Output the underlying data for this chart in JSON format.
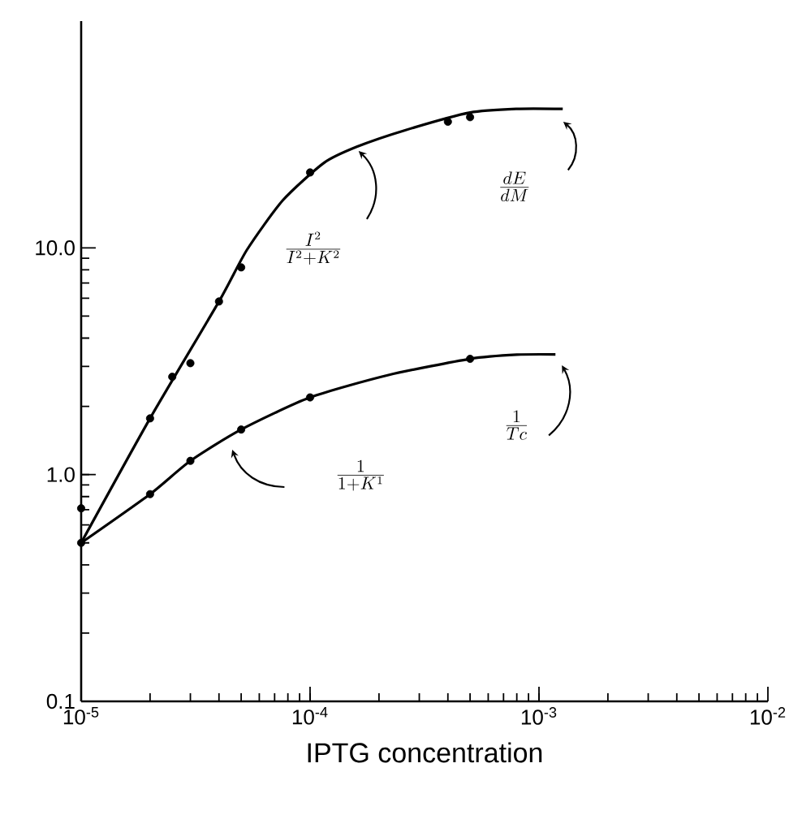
{
  "chart_data": {
    "type": "line",
    "xlabel": "IPTG concentration",
    "log": "xy",
    "xlim": [
      1e-05,
      0.01
    ],
    "ylim": [
      0.1,
      100
    ],
    "xticks": [
      {
        "value": 1e-05,
        "label": "10$^{-5}$"
      },
      {
        "value": 0.0001,
        "label": "10$^{-4}$"
      },
      {
        "value": 0.001,
        "label": "10$^{-3}$"
      },
      {
        "value": 0.01,
        "label": "10$^{-2}$"
      }
    ],
    "yticks": [
      0.1,
      {
        "value": 1,
        "label": "1.0"
      },
      {
        "value": 10,
        "label": "10.0"
      }
    ],
    "series": [
      {
        "type": "scatter",
        "marker": "circle",
        "color": "#000000",
        "x": [
          1e-05,
          2e-05,
          2.5e-05,
          3e-05,
          4e-05,
          5e-05,
          0.0001,
          0.0004,
          0.0005
        ],
        "values": [
          0.71,
          1.77,
          2.7,
          3.1,
          5.8,
          8.2,
          21.5,
          36,
          37.7
        ]
      },
      {
        "color": "#000000",
        "x": [
          1e-05,
          2e-05,
          4e-05,
          5.3e-05,
          7.6e-05,
          0.000115,
          0.00016,
          0.00026,
          0.0005,
          0.0008,
          0.00127
        ],
        "values": [
          0.5,
          1.77,
          5.8,
          9.8,
          16.2,
          23.7,
          27.9,
          33,
          39.5,
          41,
          41
        ]
      },
      {
        "type": "scatter",
        "marker": "circle",
        "color": "#000000",
        "x": [
          1e-05,
          2e-05,
          3e-05,
          5e-05,
          0.0001,
          0.0005
        ],
        "values": [
          0.5,
          0.82,
          1.15,
          1.58,
          2.19,
          3.24
        ]
      },
      {
        "color": "#000000",
        "x": [
          1e-05,
          2e-05,
          3e-05,
          5e-05,
          0.0001,
          0.00022,
          0.0005,
          0.0008,
          0.00118
        ],
        "values": [
          0.5,
          0.82,
          1.15,
          1.58,
          2.19,
          2.75,
          3.24,
          3.38,
          3.39
        ]
      }
    ],
    "annotations": [
      "\\frac{dE}{dM}",
      "\\frac{I^2}{I^2+K^2}",
      "\\frac{1}{Tc}",
      "\\frac{1}{1+K^1}"
    ]
  }
}
